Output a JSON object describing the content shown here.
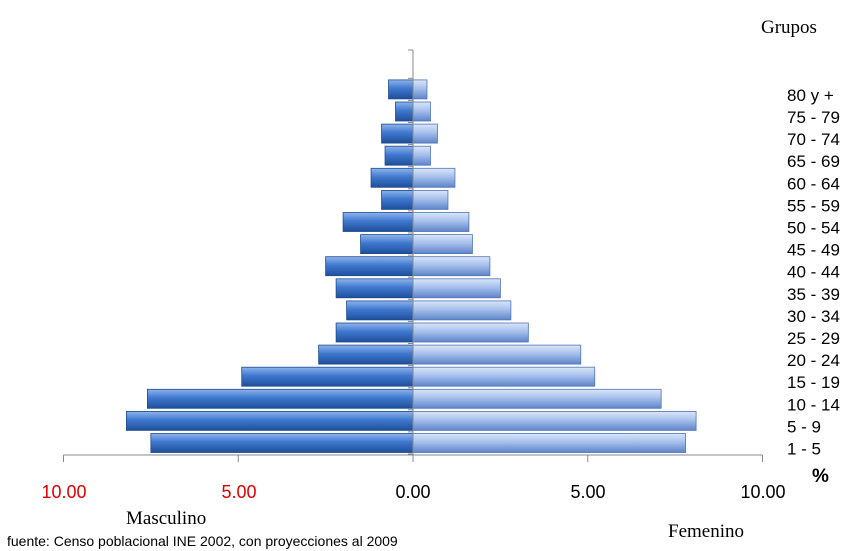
{
  "chart_data": {
    "type": "bar",
    "orientation": "horizontal",
    "variant": "population-pyramid",
    "title": "",
    "group_axis_label": "Grupos",
    "categories": [
      "1 - 5",
      "5 - 9",
      "10 - 14",
      "15 - 19",
      "20 - 24",
      "25 - 29",
      "30 - 34",
      "35 - 39",
      "40 - 44",
      "45 - 49",
      "50 - 54",
      "55 - 59",
      "60 - 64",
      "65 - 69",
      "70 - 74",
      "75 - 79",
      "80 y +"
    ],
    "series": [
      {
        "name": "Masculino",
        "color": "#3d73c4",
        "values": [
          7.5,
          8.2,
          7.6,
          4.9,
          2.7,
          2.2,
          1.9,
          2.2,
          2.5,
          1.5,
          2.0,
          0.9,
          1.2,
          0.8,
          0.9,
          0.5,
          0.7
        ]
      },
      {
        "name": "Femenino",
        "color": "#9fb9e8",
        "values": [
          7.8,
          8.1,
          7.1,
          5.2,
          4.8,
          3.3,
          2.8,
          2.5,
          2.2,
          1.7,
          1.6,
          1.0,
          1.2,
          0.5,
          0.7,
          0.5,
          0.4
        ]
      }
    ],
    "xlim": [
      -10,
      10
    ],
    "x_ticks": [
      {
        "value": -10,
        "label": "10.00",
        "color": "#e00000"
      },
      {
        "value": -5,
        "label": "5.00",
        "color": "#e00000"
      },
      {
        "value": 0,
        "label": "0.00",
        "color": "#000000"
      },
      {
        "value": 5,
        "label": "5.00",
        "color": "#000000"
      },
      {
        "value": 10,
        "label": "10.00",
        "color": "#000000"
      }
    ],
    "percent_symbol": "%",
    "left_label": "Masculino",
    "right_label": "Femenino",
    "source_note": "fuente:  Censo poblacional INE 2002, con proyecciones al 2009",
    "grid": false,
    "legend": "none"
  }
}
